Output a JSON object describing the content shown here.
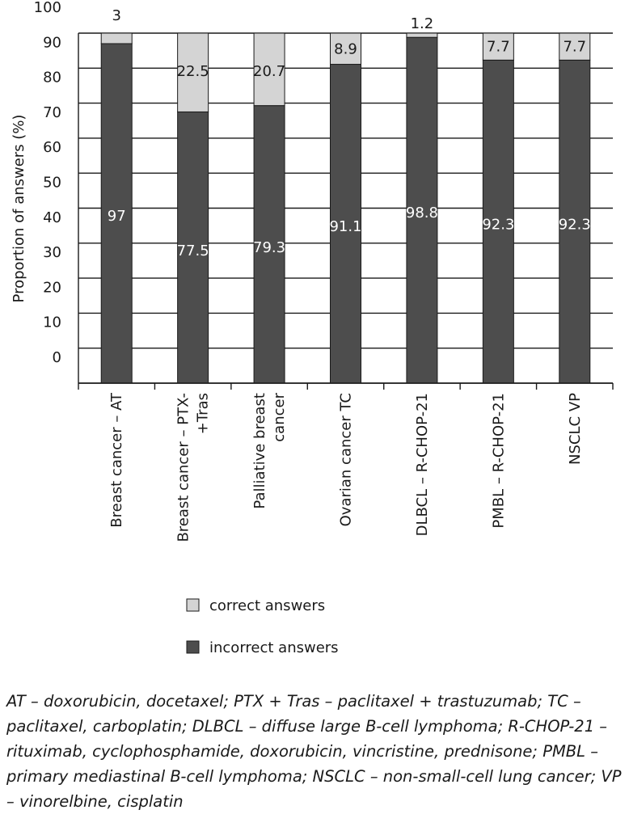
{
  "chart_data": {
    "type": "bar",
    "stacked": true,
    "ylabel": "Proportion of answers (%)",
    "yticks": [
      "100",
      "90",
      "80",
      "70",
      "60",
      "50",
      "40",
      "30",
      "20",
      "10",
      "0"
    ],
    "categories": [
      [
        "Breast cancer – AT"
      ],
      [
        "Breast cancer – PTX-",
        "+Tras"
      ],
      [
        "Palliative breast",
        "cancer"
      ],
      [
        "Ovarian cancer TC"
      ],
      [
        "DLBCL – R-CHOP-21"
      ],
      [
        "PMBL – R-CHOP-21"
      ],
      [
        "NSCLC VP"
      ]
    ],
    "series": [
      {
        "name": "incorrect answers",
        "color": "#4d4d4d",
        "values": [
          97,
          77.5,
          79.3,
          91.1,
          98.8,
          92.3,
          92.3
        ],
        "labels": [
          "97",
          "77.5",
          "79.3",
          "91.1",
          "98.8",
          "92.3",
          "92.3"
        ]
      },
      {
        "name": "correct answers",
        "color": "#d4d4d4",
        "values": [
          3,
          22.5,
          20.7,
          8.9,
          1.2,
          7.7,
          7.7
        ],
        "labels": [
          "3",
          "22.5",
          "20.7",
          "8.9",
          "1.2",
          "7.7",
          "7.7"
        ]
      }
    ],
    "legend_position": "bottom",
    "grid": true
  },
  "footnote": "AT – doxorubicin, docetaxel; PTX + Tras – paclitaxel + trastuzumab; TC – paclitaxel, carboplatin; DLBCL – diffuse large B-cell lymphoma; R-CHOP-21 – rituximab, cyclophosphamide, doxorubicin, vincristine, prednisone; PMBL – primary mediastinal B-cell lymphoma; NSCLC – non-small-cell lung cancer; VP – vinorelbine, cisplatin"
}
